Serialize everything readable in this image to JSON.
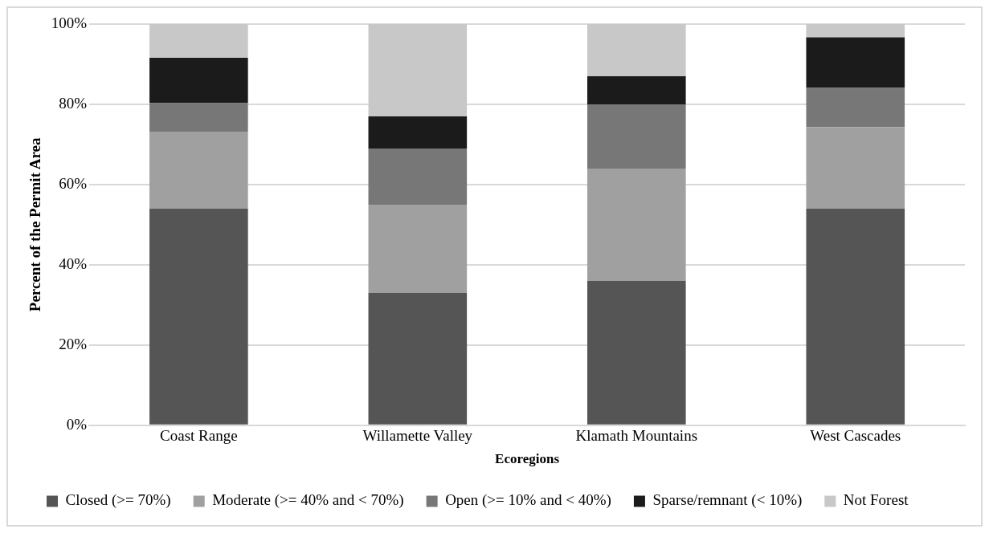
{
  "chart_data": {
    "type": "bar",
    "stacked": true,
    "xlabel": "Ecoregions",
    "ylabel": "Percent of the Permit Area",
    "categories": [
      "Coast Range",
      "Willamette Valley",
      "Klamath Mountains",
      "West Cascades"
    ],
    "series": [
      {
        "name": "Closed (>= 70%)",
        "color": "#555555",
        "values": [
          54,
          33,
          36,
          54
        ]
      },
      {
        "name": "Moderate (>= 40% and < 70%)",
        "color": "#a0a0a0",
        "values": [
          19.2,
          22,
          28,
          20.3
        ]
      },
      {
        "name": "Open (>= 10% and < 40%)",
        "color": "#777777",
        "values": [
          7.1,
          14,
          16,
          9.8
        ]
      },
      {
        "name": "Sparse/remnant (< 10%)",
        "color": "#1b1b1b",
        "values": [
          11.3,
          8,
          7,
          12.6
        ]
      },
      {
        "name": "Not Forest",
        "color": "#c8c8c8",
        "values": [
          8.4,
          23,
          13,
          3.3
        ]
      }
    ],
    "ylim": [
      0,
      100
    ],
    "yticks": [
      {
        "value": 0,
        "label": "0%"
      },
      {
        "value": 20,
        "label": "20%"
      },
      {
        "value": 40,
        "label": "40%"
      },
      {
        "value": 60,
        "label": "60%"
      },
      {
        "value": 80,
        "label": "80%"
      },
      {
        "value": 100,
        "label": "100%"
      }
    ],
    "grid": "y",
    "legend": "bottom"
  }
}
